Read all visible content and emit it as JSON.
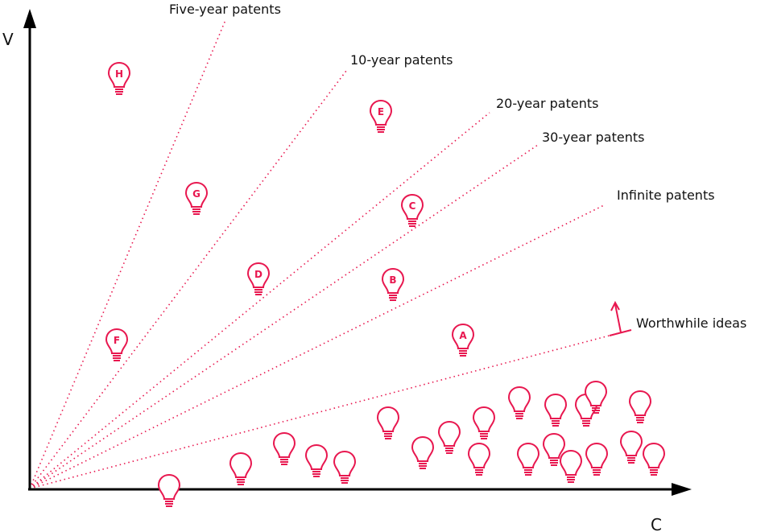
{
  "colors": {
    "accent": "#e8174f",
    "axis": "#000000",
    "text": "#111111"
  },
  "axes": {
    "y_label": "V",
    "x_label": "C"
  },
  "lines": [
    {
      "id": "five",
      "label": "Five-year patents"
    },
    {
      "id": "ten",
      "label": "10-year patents"
    },
    {
      "id": "twenty",
      "label": "20-year patents"
    },
    {
      "id": "thirty",
      "label": "30-year patents"
    },
    {
      "id": "infinite",
      "label": "Infinite patents"
    },
    {
      "id": "worthwhile",
      "label": "Worthwhile ideas"
    }
  ],
  "ideas": [
    {
      "letter": "H"
    },
    {
      "letter": "E"
    },
    {
      "letter": "G"
    },
    {
      "letter": "C"
    },
    {
      "letter": "D"
    },
    {
      "letter": "B"
    },
    {
      "letter": "F"
    },
    {
      "letter": "A"
    }
  ]
}
